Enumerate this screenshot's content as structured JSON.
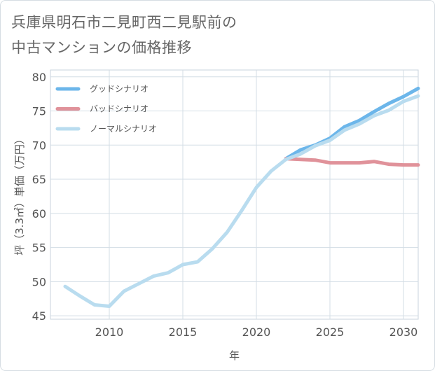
{
  "title_lines": [
    "兵庫県明石市二見町西二見駅前の",
    "中古マンションの価格推移"
  ],
  "chart_data": {
    "type": "line",
    "title": "兵庫県明石市二見町西二見駅前の中古マンションの価格推移",
    "xlabel": "年",
    "ylabel": "坪（3.3㎡）単価（万円）",
    "xlim": [
      2006,
      2031
    ],
    "ylim": [
      44.5,
      81
    ],
    "xticks": [
      2010,
      2015,
      2020,
      2025,
      2030
    ],
    "yticks": [
      45,
      50,
      55,
      60,
      65,
      70,
      75,
      80
    ],
    "grid": true,
    "legend_position": "top-left",
    "series": [
      {
        "name": "グッドシナリオ",
        "color": "#6cb6ea",
        "x": [
          2022,
          2023,
          2024,
          2025,
          2026,
          2027,
          2028,
          2029,
          2030,
          2031
        ],
        "y": [
          68.0,
          69.3,
          70.0,
          71.0,
          72.7,
          73.6,
          74.9,
          76.1,
          77.1,
          78.3
        ]
      },
      {
        "name": "バッドシナリオ",
        "color": "#e0929a",
        "x": [
          2022,
          2023,
          2024,
          2025,
          2026,
          2027,
          2028,
          2029,
          2030,
          2031
        ],
        "y": [
          68.0,
          67.9,
          67.8,
          67.4,
          67.4,
          67.4,
          67.6,
          67.2,
          67.1,
          67.1
        ]
      },
      {
        "name": "ノーマルシナリオ",
        "color": "#b9dcef",
        "x": [
          2007,
          2008,
          2009,
          2010,
          2011,
          2012,
          2013,
          2014,
          2015,
          2016,
          2017,
          2018,
          2019,
          2020,
          2021,
          2022,
          2023,
          2024,
          2025,
          2026,
          2027,
          2028,
          2029,
          2030,
          2031
        ],
        "y": [
          49.3,
          47.9,
          46.6,
          46.4,
          48.6,
          49.7,
          50.8,
          51.3,
          52.5,
          52.9,
          54.8,
          57.2,
          60.4,
          63.8,
          66.2,
          67.9,
          68.7,
          69.9,
          70.7,
          72.2,
          73.1,
          74.3,
          75.1,
          76.4,
          77.2
        ]
      }
    ]
  }
}
